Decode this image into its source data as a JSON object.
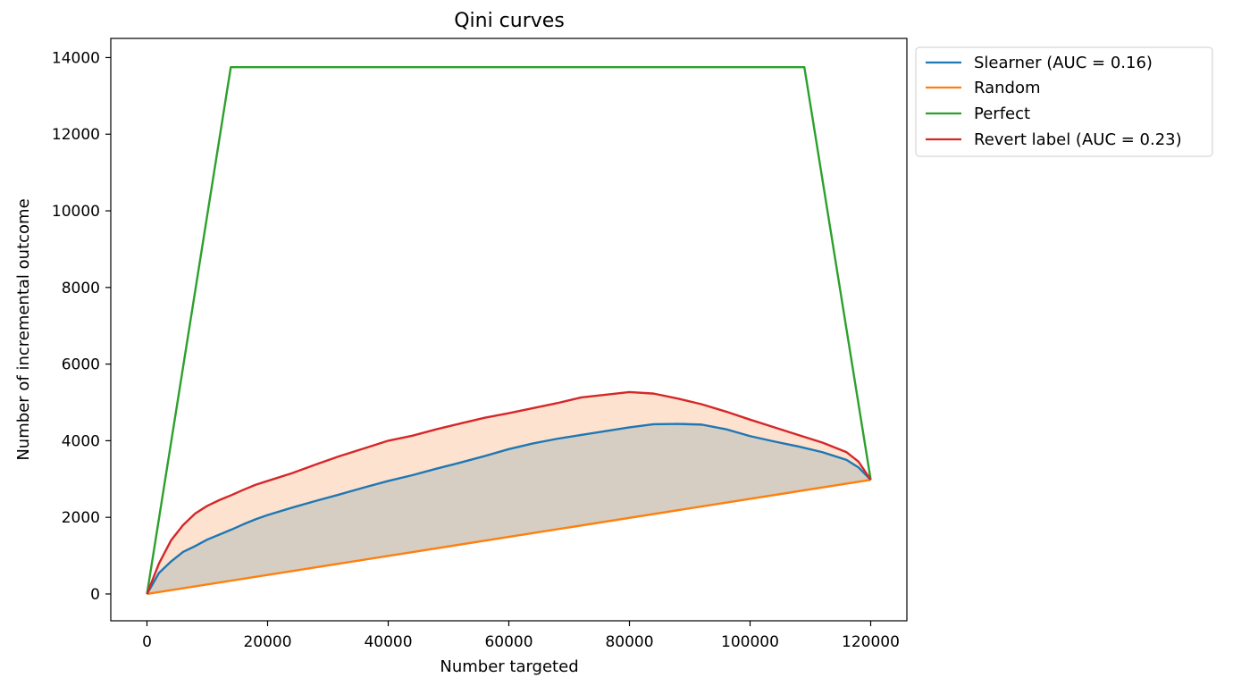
{
  "chart_data": {
    "type": "line",
    "title": "Qini curves",
    "xlabel": "Number targeted",
    "ylabel": "Number of incremental outcome",
    "xlim": [
      -6000,
      126000
    ],
    "ylim": [
      -700,
      14500
    ],
    "xticks": [
      0,
      20000,
      40000,
      60000,
      80000,
      100000,
      120000
    ],
    "yticks": [
      0,
      2000,
      4000,
      6000,
      8000,
      10000,
      12000,
      14000
    ],
    "xtick_labels": [
      "0",
      "20000",
      "40000",
      "60000",
      "80000",
      "100000",
      "120000"
    ],
    "ytick_labels": [
      "0",
      "2000",
      "4000",
      "6000",
      "8000",
      "10000",
      "12000",
      "14000"
    ],
    "grid": false,
    "legend_position": "outside upper right",
    "series": [
      {
        "name": "Slearner (AUC = 0.16)",
        "color": "#1f77b4",
        "fill": "#d6cec3",
        "x": [
          0,
          2000,
          4000,
          6000,
          8000,
          10000,
          12000,
          14000,
          16000,
          18000,
          20000,
          24000,
          28000,
          32000,
          36000,
          40000,
          44000,
          48000,
          52000,
          56000,
          60000,
          64000,
          68000,
          72000,
          76000,
          80000,
          84000,
          88000,
          92000,
          96000,
          100000,
          104000,
          108000,
          112000,
          116000,
          118000,
          120000
        ],
        "y": [
          0,
          550,
          850,
          1100,
          1250,
          1420,
          1550,
          1680,
          1820,
          1950,
          2060,
          2250,
          2430,
          2600,
          2780,
          2950,
          3100,
          3270,
          3430,
          3600,
          3780,
          3930,
          4050,
          4150,
          4250,
          4350,
          4430,
          4440,
          4420,
          4300,
          4120,
          3980,
          3850,
          3700,
          3500,
          3300,
          2980
        ]
      },
      {
        "name": "Random",
        "color": "#ff7f0e",
        "x": [
          0,
          120000
        ],
        "y": [
          0,
          2980
        ]
      },
      {
        "name": "Perfect",
        "color": "#2ca02c",
        "x": [
          0,
          13900,
          109000,
          120000
        ],
        "y": [
          0,
          13750,
          13750,
          2980
        ]
      },
      {
        "name": "Revert label (AUC = 0.23)",
        "color": "#d62728",
        "fill": "#fde2d0",
        "x": [
          0,
          2000,
          4000,
          6000,
          8000,
          10000,
          12000,
          14000,
          16000,
          18000,
          20000,
          24000,
          28000,
          32000,
          36000,
          40000,
          44000,
          48000,
          52000,
          56000,
          60000,
          64000,
          68000,
          72000,
          76000,
          80000,
          84000,
          88000,
          92000,
          96000,
          100000,
          104000,
          108000,
          112000,
          116000,
          118000,
          120000
        ],
        "y": [
          0,
          800,
          1400,
          1800,
          2100,
          2300,
          2450,
          2580,
          2720,
          2850,
          2950,
          3150,
          3380,
          3600,
          3800,
          4000,
          4130,
          4300,
          4450,
          4600,
          4720,
          4850,
          4980,
          5130,
          5200,
          5270,
          5230,
          5100,
          4950,
          4760,
          4550,
          4350,
          4150,
          3950,
          3700,
          3450,
          2980
        ]
      }
    ]
  }
}
